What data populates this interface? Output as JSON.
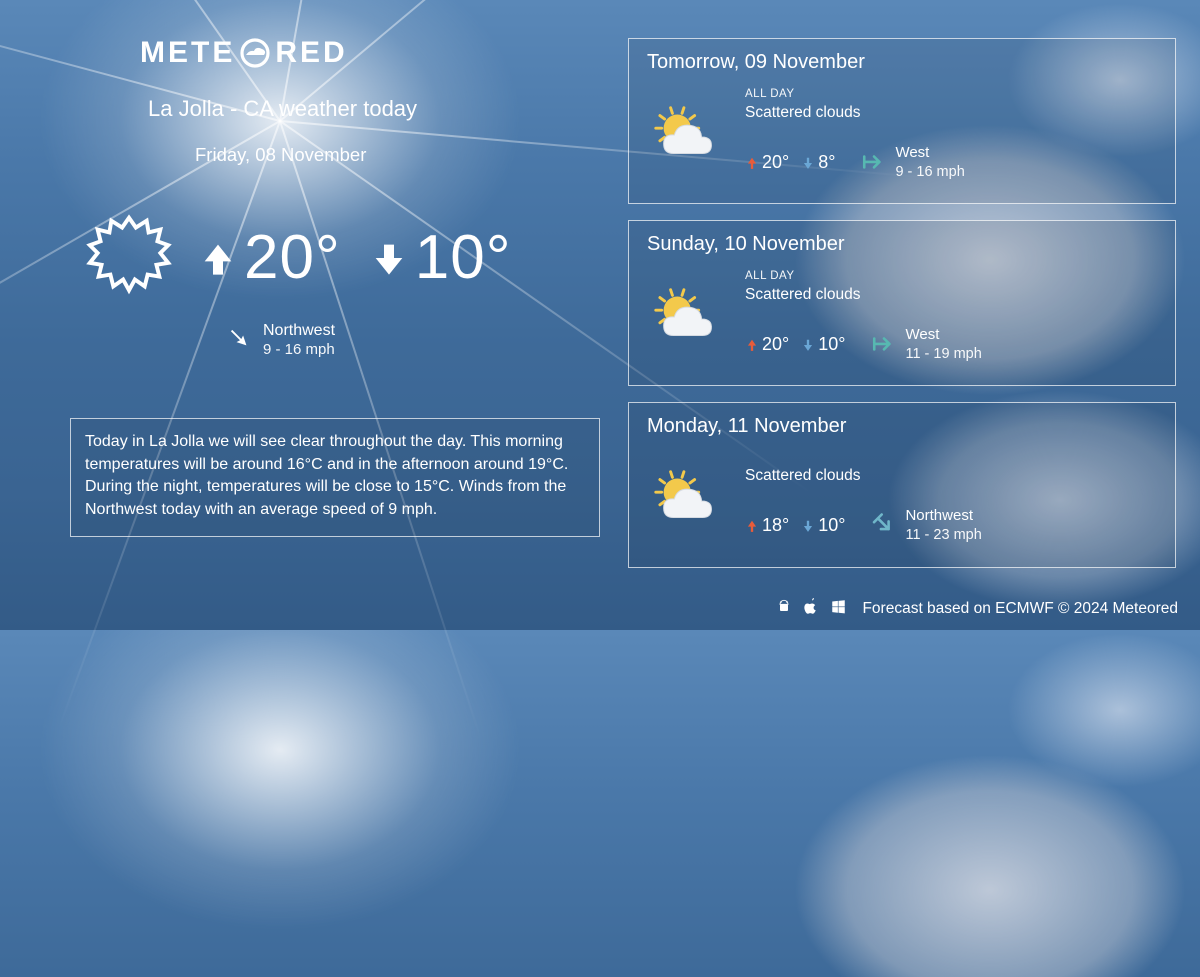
{
  "brand": {
    "name_left": "METE",
    "name_right": "RED"
  },
  "colors": {
    "text": "#ffffff",
    "border": "rgba(255,255,255,0.7)",
    "card_bg": "rgba(0,0,0,0.07)",
    "arrow_up": "#e85c3a",
    "arrow_down": "#6aa7d6",
    "wind_arrow": "#57b8b1",
    "wind_arrow_alt": "#6fb6c9",
    "sun_yellow": "#f3c94b",
    "cloud_white": "#f2f4f7"
  },
  "today": {
    "location_title": "La Jolla - CA weather today",
    "date": "Friday, 08 November",
    "high": "20°",
    "low": "10°",
    "wind_dir": "Northwest",
    "wind_speed": "9 - 16 mph",
    "wind_arrow_rotation_deg": 135,
    "summary": "Today in La Jolla we will see clear throughout the day. This morning temperatures will be around 16°C and in the afternoon around 19°C. During the night, temperatures will be close to 15°C. Winds from the Northwest today with an average speed of 9 mph."
  },
  "forecast": [
    {
      "title": "Tomorrow, 09 November",
      "all_day_label": "ALL DAY",
      "condition": "Scattered clouds",
      "high": "20°",
      "low": "8°",
      "wind_dir": "West",
      "wind_speed": "9 - 16 mph",
      "wind_arrow_color": "#57b8b1",
      "wind_arrow_rotation_deg": 90
    },
    {
      "title": "Sunday, 10 November",
      "all_day_label": "ALL DAY",
      "condition": "Scattered clouds",
      "high": "20°",
      "low": "10°",
      "wind_dir": "West",
      "wind_speed": "11 - 19 mph",
      "wind_arrow_color": "#57b8b1",
      "wind_arrow_rotation_deg": 90
    },
    {
      "title": "Monday, 11 November",
      "all_day_label": "",
      "condition": "Scattered clouds",
      "high": "18°",
      "low": "10°",
      "wind_dir": "Northwest",
      "wind_speed": "11 - 23 mph",
      "wind_arrow_color": "#6fb6c9",
      "wind_arrow_rotation_deg": 135
    }
  ],
  "footer": {
    "text": "Forecast based on ECMWF © 2024 Meteored"
  }
}
